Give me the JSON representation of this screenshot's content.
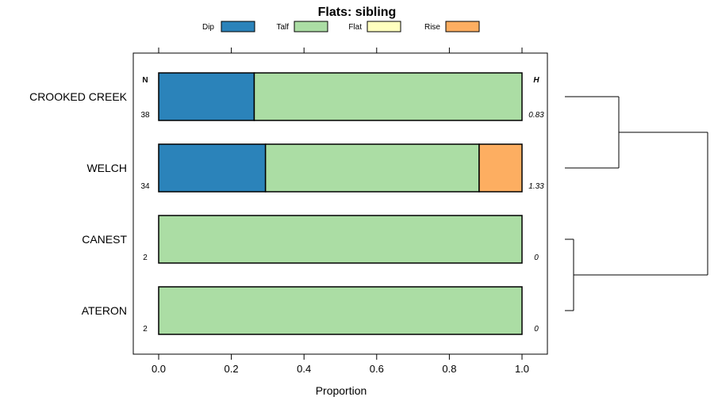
{
  "chart_data": {
    "type": "bar",
    "orientation": "horizontal",
    "stacked": true,
    "title": "Flats: sibling",
    "xlabel": "Proportion",
    "xlim": [
      0,
      1
    ],
    "xticks": [
      "0.0",
      "0.2",
      "0.4",
      "0.6",
      "0.8",
      "1.0"
    ],
    "xtick_values": [
      0,
      0.2,
      0.4,
      0.6,
      0.8,
      1.0
    ],
    "categories": [
      "CROOKED CREEK",
      "WELCH",
      "CANEST",
      "ATERON"
    ],
    "series": [
      {
        "name": "Dip",
        "color": "#2b83ba",
        "values": [
          0.263,
          0.294,
          0,
          0
        ]
      },
      {
        "name": "Talf",
        "color": "#abdda4",
        "values": [
          0.737,
          0.588,
          1.0,
          1.0
        ]
      },
      {
        "name": "Flat",
        "color": "#ffffbf",
        "values": [
          0,
          0,
          0,
          0
        ]
      },
      {
        "name": "Rise",
        "color": "#fdae61",
        "values": [
          0,
          0.118,
          0,
          0
        ]
      }
    ],
    "n_header": "N",
    "h_header": "H",
    "n_values": [
      "38",
      "34",
      "2",
      "2"
    ],
    "h_values": [
      "0.83",
      "1.33",
      "0",
      "0"
    ],
    "legend_position": "top",
    "dendrogram": {
      "note": "hierarchical clustering of rows",
      "merges": [
        {
          "left": "CROOKED CREEK",
          "right": "WELCH"
        },
        {
          "left": "CANEST",
          "right": "ATERON"
        },
        {
          "left": "cluster-1",
          "right": "cluster-2"
        }
      ]
    }
  }
}
